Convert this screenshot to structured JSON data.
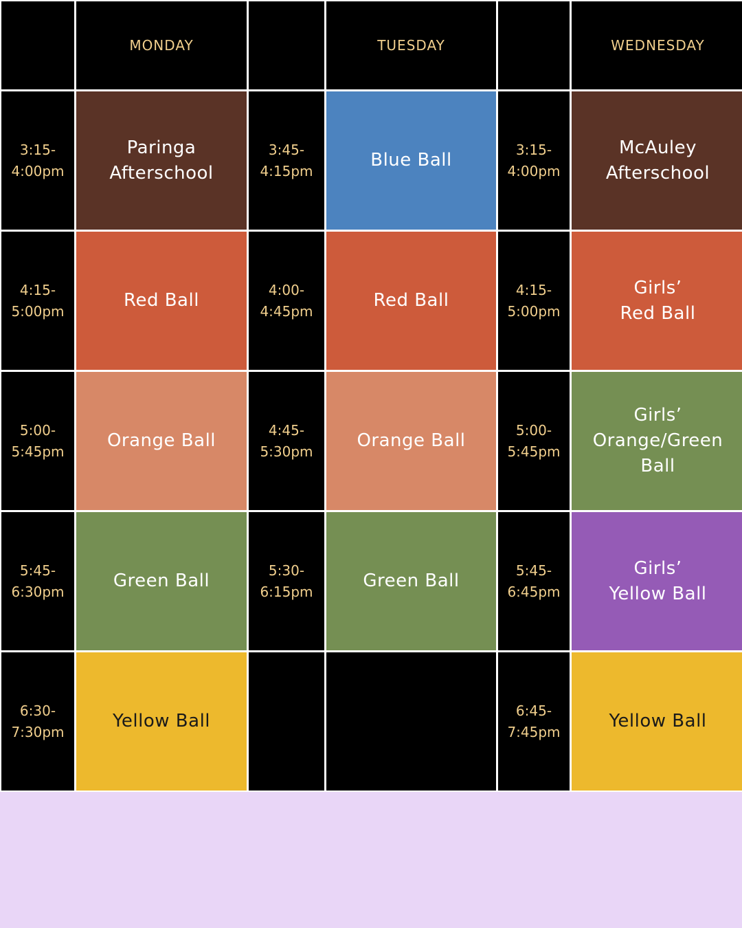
{
  "colors": {
    "brown": "#5a3326",
    "blue": "#4c83bf",
    "red": "#cd5b3b",
    "orange": "#d78867",
    "green": "#758f53",
    "purple": "#955bb6",
    "yellow": "#edb92d",
    "black": "#000000",
    "header_text": "#f1cf8d",
    "footer_band": "#e9d6f7"
  },
  "days": {
    "monday": "MONDAY",
    "tuesday": "TUESDAY",
    "wednesday": "WEDNESDAY"
  },
  "rows": [
    {
      "mon_time": "3:15-\n4:00pm",
      "mon_class": "Paringa\nAfterschool",
      "tue_time": "3:45-\n4:15pm",
      "tue_class": "Blue Ball",
      "wed_time": "3:15-\n4:00pm",
      "wed_class": "McAuley\nAfterschool"
    },
    {
      "mon_time": "4:15-\n5:00pm",
      "mon_class": "Red Ball",
      "tue_time": "4:00-\n4:45pm",
      "tue_class": "Red Ball",
      "wed_time": "4:15-\n5:00pm",
      "wed_class": "Girls’\nRed Ball"
    },
    {
      "mon_time": "5:00-\n5:45pm",
      "mon_class": "Orange Ball",
      "tue_time": "4:45-\n5:30pm",
      "tue_class": "Orange Ball",
      "wed_time": "5:00-\n5:45pm",
      "wed_class": "Girls’\nOrange/Green\nBall"
    },
    {
      "mon_time": "5:45-\n6:30pm",
      "mon_class": "Green Ball",
      "tue_time": "5:30-\n6:15pm",
      "tue_class": "Green Ball",
      "wed_time": "5:45-\n6:45pm",
      "wed_class": "Girls’\nYellow Ball"
    },
    {
      "mon_time": "6:30-\n7:30pm",
      "mon_class": "Yellow Ball",
      "tue_time": "",
      "tue_class": "",
      "wed_time": "6:45-\n7:45pm",
      "wed_class": "Yellow Ball"
    }
  ]
}
